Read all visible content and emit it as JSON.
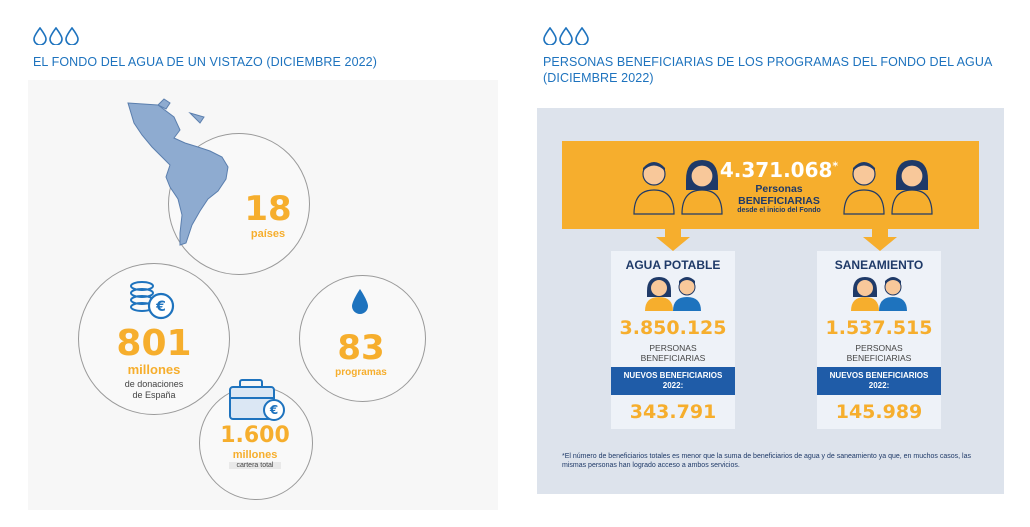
{
  "left": {
    "title": "EL FONDO DEL AGUA DE UN VISTAZO (DICIEMBRE 2022)",
    "countries": {
      "value": "18",
      "label": "países"
    },
    "donations": {
      "value": "801",
      "unit": "millones",
      "desc_line1": "de donaciones",
      "desc_line2": "de España"
    },
    "programs": {
      "value": "83",
      "label": "programas"
    },
    "portfolio": {
      "value": "1.600",
      "unit": "millones",
      "desc": "cartera total"
    }
  },
  "right": {
    "title_line1": "PERSONAS BENEFICIARIAS DE LOS PROGRAMAS DEL FONDO DEL AGUA",
    "title_line2": "(DICIEMBRE 2022)",
    "total": {
      "value": "4.371.068",
      "asterisk": "*",
      "line1": "Personas",
      "line2": "BENEFICIARIAS",
      "line3": "desde el inicio del Fondo"
    },
    "water": {
      "title": "AGUA POTABLE",
      "value": "3.850.125",
      "sub1": "PERSONAS",
      "sub2": "BENEFICIARIAS",
      "new1": "NUEVOS BENEFICIARIOS",
      "new2": "2022:",
      "new_value": "343.791"
    },
    "sanitation": {
      "title": "SANEAMIENTO",
      "value": "1.537.515",
      "sub1": "PERSONAS",
      "sub2": "BENEFICIARIAS",
      "new1": "NUEVOS BENEFICIARIOS",
      "new2": "2022:",
      "new_value": "145.989"
    },
    "footnote": "*El número de beneficiarios totales es menor que la suma de beneficiarios de agua y de saneamiento ya que, en muchos casos, las mismas personas han logrado acceso a ambos servicios."
  },
  "colors": {
    "accent_blue": "#1e73be",
    "navy": "#1f3a68",
    "gold": "#f6ae2d",
    "panel": "#dde3ec"
  },
  "icons": [
    "water-drop-icon",
    "map-icon",
    "coins-euro-icon",
    "briefcase-euro-icon",
    "person-icon"
  ]
}
